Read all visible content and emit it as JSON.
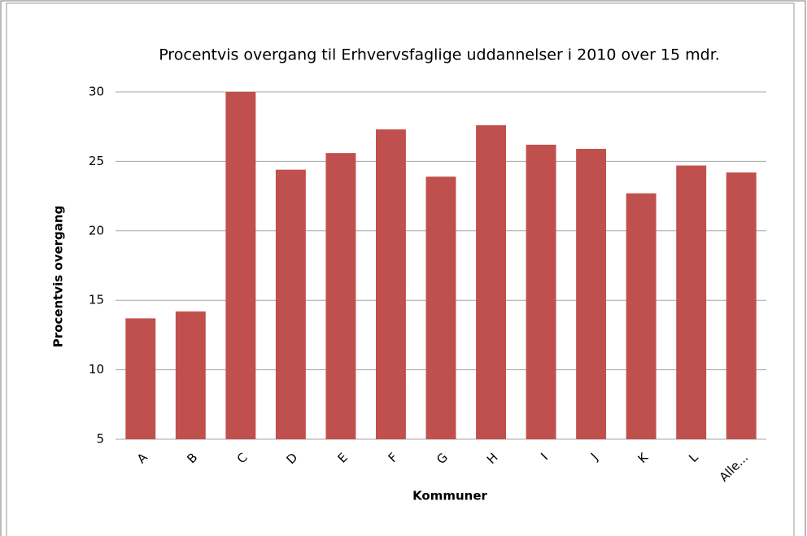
{
  "chart_data": {
    "type": "bar",
    "title": "Procentvis overgang til Erhvervsfaglige uddannelser  i 2010 over 15 mdr.",
    "x_label": "Kommuner",
    "y_label": "Procentvis overgang",
    "categories": [
      "A",
      "B",
      "C",
      "D",
      "E",
      "F",
      "G",
      "H",
      "I",
      "J",
      "K",
      "L",
      "Alle..."
    ],
    "values": [
      13.7,
      14.2,
      30,
      24.4,
      25.6,
      27.3,
      23.9,
      27.6,
      26.2,
      25.9,
      22.7,
      24.7,
      24.2
    ],
    "color": "#c0504d",
    "ylim": [
      5,
      30
    ],
    "yticks": [
      5,
      10,
      15,
      20,
      25,
      30
    ],
    "grid": true
  }
}
